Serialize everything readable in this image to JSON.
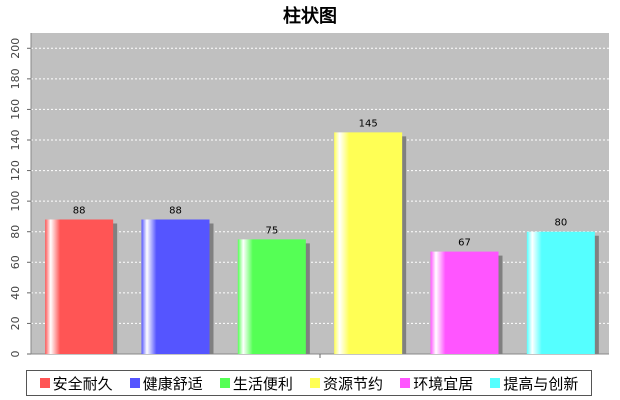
{
  "chart_data": {
    "type": "bar",
    "title": "柱状图",
    "xlabel": "",
    "ylabel": "",
    "categories": [
      "安全耐久",
      "健康舒适",
      "生活便利",
      "资源节约",
      "环境宜居",
      "提高与创新"
    ],
    "values": [
      88,
      88,
      75,
      145,
      67,
      80
    ],
    "colors": [
      "#ff5555",
      "#5555ff",
      "#55ff55",
      "#ffff55",
      "#ff55ff",
      "#55ffff"
    ],
    "ylim": [
      0,
      210
    ],
    "yticks": [
      "0",
      "20",
      "40",
      "60",
      "80",
      "100",
      "120",
      "140",
      "160",
      "180",
      "200"
    ],
    "grid": true,
    "legend_position": "bottom",
    "plot_background": "#c0c0c0"
  }
}
